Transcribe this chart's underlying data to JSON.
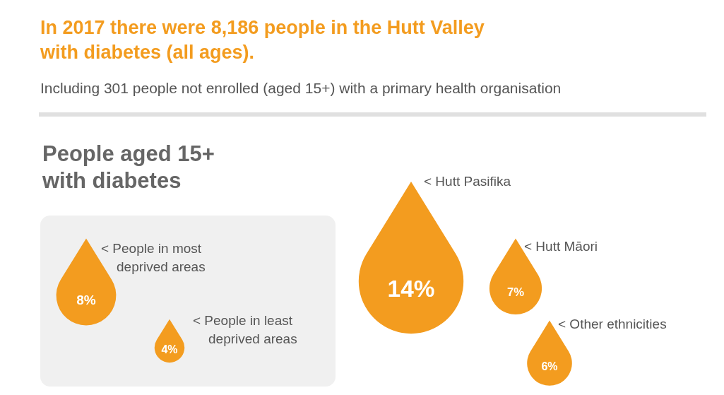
{
  "chart_data": {
    "type": "other",
    "title": "In 2017 there were 8,186 people in the Hutt Valley with diabetes (all ages).",
    "subtitle": "Including 301 people not enrolled (aged 15+) with a primary health organisation",
    "annotations": [
      "People aged 15+ with diabetes"
    ],
    "categories": [
      "< People in most deprived areas",
      "< People in least deprived areas",
      "< Hutt Pasifika",
      "< Hutt Māori",
      "< Other ethnicities"
    ],
    "values": [
      8,
      4,
      14,
      7,
      6
    ],
    "value_labels": [
      "8%",
      "4%",
      "14%",
      "7%",
      "6%"
    ],
    "color": "#f39c1f"
  }
}
